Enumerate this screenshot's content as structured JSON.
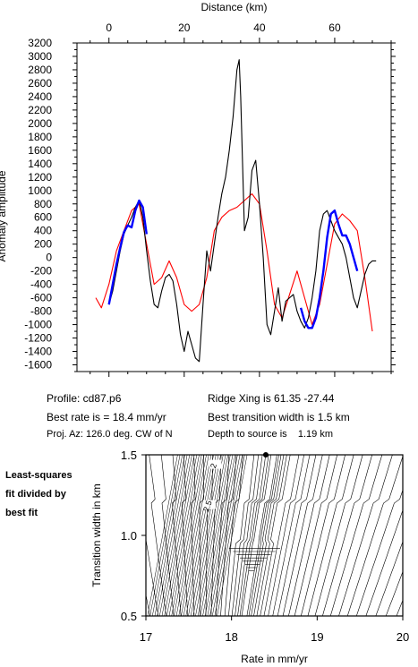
{
  "chart_data": [
    {
      "type": "line",
      "xlabel": "Distance (km)",
      "ylabel": "Anomaly amplitude",
      "xlim": [
        -8.5,
        75
      ],
      "ylim": [
        -1700,
        3200
      ],
      "x_ticks": [
        0,
        20,
        40,
        60
      ],
      "y_ticks": [
        -1600,
        -1400,
        -1200,
        -1000,
        -800,
        -600,
        -400,
        -200,
        0,
        200,
        400,
        600,
        800,
        1000,
        1200,
        1400,
        1600,
        1800,
        2000,
        2200,
        2400,
        2600,
        2800,
        3000,
        3200
      ],
      "series": [
        {
          "color": "#000000",
          "x": [
            0,
            1,
            2,
            3,
            4,
            5,
            6,
            7,
            8,
            9,
            10,
            11,
            12,
            13,
            14,
            15,
            16,
            17,
            18,
            19,
            20,
            21,
            22,
            23,
            24,
            25,
            26,
            27,
            28,
            29,
            30,
            31,
            32,
            33,
            34,
            34.6,
            35,
            35.5,
            36,
            37,
            38,
            39,
            40,
            41,
            42,
            43,
            44,
            45,
            46,
            47,
            48,
            49,
            50,
            51,
            52,
            53,
            54,
            55,
            56,
            57,
            58,
            59,
            60,
            61,
            62,
            63,
            64,
            65,
            66,
            67,
            68,
            69,
            70,
            71
          ],
          "y": [
            -700,
            -500,
            -200,
            100,
            350,
            480,
            600,
            750,
            850,
            600,
            100,
            -350,
            -700,
            -750,
            -500,
            -300,
            -250,
            -350,
            -700,
            -1150,
            -1400,
            -1100,
            -1300,
            -1500,
            -1550,
            -700,
            100,
            -200,
            200,
            600,
            950,
            1200,
            1600,
            2100,
            2800,
            2950,
            2400,
            1400,
            400,
            600,
            1300,
            1450,
            800,
            0,
            -1000,
            -1150,
            -800,
            -450,
            -950,
            -650,
            -600,
            -550,
            -800,
            -950,
            -1050,
            -900,
            -600,
            -200,
            400,
            650,
            700,
            550,
            400,
            300,
            200,
            0,
            -300,
            -600,
            -750,
            -500,
            -250,
            -100,
            -50,
            -50
          ]
        },
        {
          "color": "#0000ff",
          "x": [
            0,
            1,
            2,
            3,
            4,
            5,
            6,
            7,
            8,
            9,
            10,
            51,
            52,
            53,
            54,
            55,
            56,
            57,
            58,
            59,
            60,
            61,
            62,
            63,
            64,
            65,
            66
          ],
          "y": [
            -700,
            -400,
            -100,
            150,
            380,
            480,
            450,
            700,
            850,
            750,
            350,
            -750,
            -950,
            -1050,
            -1050,
            -900,
            -600,
            -200,
            300,
            650,
            700,
            500,
            330,
            330,
            200,
            0,
            -200
          ]
        },
        {
          "color": "#ff0000",
          "x": [
            -3.5,
            -2,
            0,
            2,
            4,
            6,
            8,
            10,
            12,
            14,
            16,
            18,
            20,
            22,
            24,
            26,
            28,
            30,
            32,
            34,
            36,
            38,
            40,
            42,
            44,
            46,
            48,
            50,
            52,
            54,
            56,
            58,
            60,
            62,
            64,
            66,
            68,
            70
          ],
          "y": [
            -600,
            -750,
            -400,
            100,
            400,
            700,
            800,
            200,
            -400,
            -300,
            -50,
            -300,
            -700,
            -800,
            -700,
            -300,
            400,
            600,
            700,
            750,
            850,
            950,
            800,
            100,
            -700,
            -900,
            -550,
            -200,
            -600,
            -1000,
            -700,
            -100,
            500,
            650,
            550,
            400,
            -300,
            -1100
          ]
        }
      ]
    },
    {
      "type": "contour",
      "xlabel": "Rate in mm/yr",
      "ylabel": "Transition width in km",
      "xlim": [
        17,
        20
      ],
      "ylim": [
        0.5,
        1.5
      ],
      "x_ticks": [
        "17",
        "18",
        "19",
        "20"
      ],
      "y_ticks": [
        "0.5",
        "1.0",
        "1.5"
      ],
      "contour_labels": [
        "2",
        "2.5"
      ],
      "best_fit_point": {
        "x": 18.4,
        "y": 1.5
      }
    }
  ],
  "profile": "Profile: cd87.p6",
  "best_rate": "Best rate is = 18.4 mm/yr",
  "proj_az": "Proj. Az: 126.0 deg. CW of N",
  "ridge_xing": "Ridge Xing is 61.35 -27.44",
  "best_transition": "Best transition width is 1.5 km",
  "depth": "Depth to source is    1.19 km",
  "note_lines": [
    "Least-squares",
    "fit divided by",
    "best fit"
  ]
}
